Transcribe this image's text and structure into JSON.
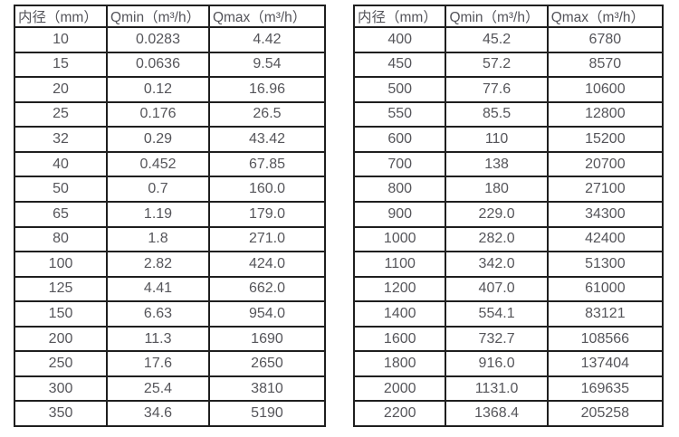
{
  "page": {
    "background_color": "#ffffff",
    "border_color": "#1f1f1f",
    "text_color": "#55555a"
  },
  "tables": [
    {
      "id": "flow-table-small-diameters",
      "headers": [
        "内径（mm）",
        "Qmin（m³/h）",
        "Qmax（m³/h）"
      ],
      "rows": [
        [
          "10",
          "0.0283",
          "4.42"
        ],
        [
          "15",
          "0.0636",
          "9.54"
        ],
        [
          "20",
          "0.12",
          "16.96"
        ],
        [
          "25",
          "0.176",
          "26.5"
        ],
        [
          "32",
          "0.29",
          "43.42"
        ],
        [
          "40",
          "0.452",
          "67.85"
        ],
        [
          "50",
          "0.7",
          "160.0"
        ],
        [
          "65",
          "1.19",
          "179.0"
        ],
        [
          "80",
          "1.8",
          "271.0"
        ],
        [
          "100",
          "2.82",
          "424.0"
        ],
        [
          "125",
          "4.41",
          "662.0"
        ],
        [
          "150",
          "6.63",
          "954.0"
        ],
        [
          "200",
          "11.3",
          "1690"
        ],
        [
          "250",
          "17.6",
          "2650"
        ],
        [
          "300",
          "25.4",
          "3810"
        ],
        [
          "350",
          "34.6",
          "5190"
        ]
      ]
    },
    {
      "id": "flow-table-large-diameters",
      "headers": [
        "内径（mm）",
        "Qmin（m³/h）",
        "Qmax（m³/h）"
      ],
      "rows": [
        [
          "400",
          "45.2",
          "6780"
        ],
        [
          "450",
          "57.2",
          "8570"
        ],
        [
          "500",
          "77.6",
          "10600"
        ],
        [
          "550",
          "85.5",
          "12800"
        ],
        [
          "600",
          "110",
          "15200"
        ],
        [
          "700",
          "138",
          "20700"
        ],
        [
          "800",
          "180",
          "27100"
        ],
        [
          "900",
          "229.0",
          "34300"
        ],
        [
          "1000",
          "282.0",
          "42400"
        ],
        [
          "1100",
          "342.0",
          "51300"
        ],
        [
          "1200",
          "407.0",
          "61000"
        ],
        [
          "1400",
          "554.1",
          "83121"
        ],
        [
          "1600",
          "732.7",
          "108566"
        ],
        [
          "1800",
          "916.0",
          "137404"
        ],
        [
          "2000",
          "1131.0",
          "169635"
        ],
        [
          "2200",
          "1368.4",
          "205258"
        ]
      ]
    }
  ]
}
